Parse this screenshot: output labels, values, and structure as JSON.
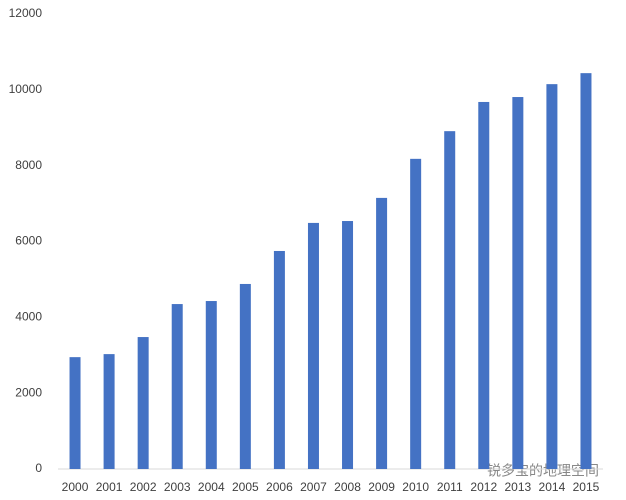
{
  "chart_data": {
    "type": "bar",
    "categories": [
      "2000",
      "2001",
      "2002",
      "2003",
      "2004",
      "2005",
      "2006",
      "2007",
      "2008",
      "2009",
      "2010",
      "2011",
      "2012",
      "2013",
      "2014",
      "2015"
    ],
    "values": [
      2950,
      3030,
      3480,
      4350,
      4430,
      4880,
      5750,
      6490,
      6540,
      7150,
      8180,
      8910,
      9680,
      9810,
      10150,
      10440
    ],
    "color": "#4472c4",
    "ylim": [
      0,
      12000
    ],
    "yticks": [
      0,
      2000,
      4000,
      6000,
      8000,
      10000,
      12000
    ],
    "grid": false
  },
  "watermark": "锐多宝的地理空间"
}
